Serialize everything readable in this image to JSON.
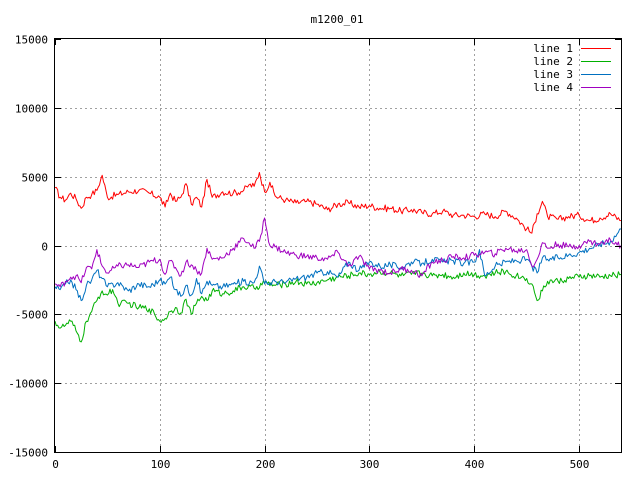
{
  "chart_data": {
    "type": "line",
    "title": "m1200_01",
    "xlabel": "",
    "ylabel": "",
    "xlim": [
      0,
      540
    ],
    "ylim": [
      -15000,
      15000
    ],
    "x_ticks": [
      0,
      100,
      200,
      300,
      400,
      500
    ],
    "y_ticks": [
      -15000,
      -10000,
      -5000,
      0,
      5000,
      10000,
      15000
    ],
    "grid": true,
    "legend_position": "top-right",
    "series": [
      {
        "name": "line 1",
        "color": "#ff0000",
        "x": [
          0,
          5,
          10,
          15,
          20,
          25,
          30,
          35,
          40,
          45,
          50,
          60,
          70,
          80,
          90,
          100,
          105,
          110,
          115,
          120,
          125,
          130,
          135,
          140,
          145,
          150,
          160,
          170,
          180,
          185,
          190,
          195,
          200,
          205,
          210,
          220,
          230,
          240,
          250,
          260,
          270,
          280,
          290,
          300,
          310,
          320,
          330,
          340,
          350,
          360,
          370,
          380,
          390,
          400,
          410,
          420,
          430,
          440,
          450,
          455,
          460,
          465,
          470,
          480,
          490,
          500,
          510,
          520,
          530,
          540
        ],
        "y": [
          4200,
          3500,
          3300,
          3800,
          3400,
          2700,
          3500,
          3700,
          4000,
          5100,
          3500,
          3700,
          3900,
          4000,
          3800,
          3500,
          2800,
          3800,
          3200,
          3500,
          4500,
          3000,
          3500,
          2800,
          4800,
          3500,
          3900,
          3800,
          4000,
          4400,
          4300,
          5300,
          3900,
          4600,
          3600,
          3300,
          3100,
          3200,
          3000,
          2600,
          3000,
          3100,
          2800,
          2900,
          2700,
          2700,
          2500,
          2600,
          2400,
          2300,
          2500,
          2200,
          2200,
          2100,
          2300,
          2100,
          2500,
          2000,
          1200,
          900,
          2300,
          3200,
          2100,
          1900,
          2100,
          2200,
          1800,
          2000,
          2300,
          1800
        ]
      },
      {
        "name": "line 2",
        "color": "#00b000",
        "x": [
          0,
          5,
          10,
          15,
          20,
          25,
          30,
          35,
          40,
          45,
          50,
          55,
          60,
          70,
          80,
          90,
          95,
          100,
          105,
          110,
          115,
          120,
          125,
          130,
          135,
          140,
          145,
          150,
          160,
          170,
          180,
          190,
          200,
          210,
          220,
          230,
          240,
          250,
          260,
          270,
          280,
          290,
          300,
          310,
          320,
          330,
          340,
          350,
          360,
          370,
          380,
          390,
          400,
          410,
          420,
          430,
          440,
          450,
          455,
          460,
          465,
          470,
          480,
          490,
          500,
          510,
          520,
          530,
          540
        ],
        "y": [
          -5500,
          -6000,
          -5800,
          -5500,
          -6200,
          -7000,
          -5500,
          -4800,
          -4000,
          -3300,
          -3600,
          -3200,
          -4200,
          -4200,
          -4500,
          -4600,
          -5000,
          -5500,
          -5300,
          -4800,
          -4500,
          -4900,
          -3900,
          -5000,
          -4200,
          -3700,
          -4000,
          -3300,
          -3500,
          -3300,
          -3000,
          -3100,
          -2700,
          -2900,
          -2800,
          -2600,
          -2800,
          -2700,
          -2500,
          -2300,
          -2200,
          -2000,
          -2100,
          -1900,
          -2000,
          -2200,
          -2100,
          -2000,
          -2200,
          -2100,
          -2300,
          -2000,
          -2100,
          -2200,
          -2000,
          -1900,
          -2200,
          -2400,
          -2800,
          -4000,
          -3300,
          -2600,
          -2600,
          -2400,
          -2300,
          -2200,
          -2300,
          -2200,
          -2100
        ]
      },
      {
        "name": "line 3",
        "color": "#0070c0",
        "x": [
          0,
          5,
          10,
          15,
          20,
          25,
          30,
          35,
          40,
          45,
          50,
          60,
          70,
          80,
          90,
          100,
          105,
          110,
          115,
          120,
          125,
          130,
          135,
          140,
          145,
          150,
          160,
          170,
          180,
          190,
          195,
          200,
          210,
          220,
          230,
          240,
          250,
          260,
          270,
          280,
          290,
          300,
          310,
          320,
          330,
          340,
          350,
          360,
          370,
          380,
          390,
          400,
          405,
          410,
          420,
          430,
          440,
          450,
          455,
          460,
          465,
          470,
          480,
          490,
          500,
          510,
          520,
          530,
          540
        ],
        "y": [
          -3000,
          -3200,
          -2800,
          -2500,
          -3200,
          -4000,
          -2900,
          -2500,
          -1800,
          -2400,
          -3000,
          -2700,
          -3300,
          -2800,
          -3000,
          -2500,
          -2800,
          -2300,
          -3200,
          -3700,
          -2900,
          -3600,
          -2400,
          -3500,
          -2600,
          -2900,
          -3000,
          -2800,
          -2600,
          -2700,
          -1500,
          -2800,
          -2600,
          -2700,
          -2400,
          -2300,
          -2000,
          -1900,
          -2300,
          -1200,
          -1800,
          -1200,
          -1500,
          -1400,
          -1600,
          -1200,
          -1300,
          -1000,
          -1200,
          -1100,
          -1300,
          -1200,
          -300,
          -2200,
          -1500,
          -1200,
          -1100,
          -1000,
          -1500,
          -2000,
          -900,
          -1000,
          -900,
          -700,
          -500,
          -200,
          100,
          300,
          1200
        ]
      },
      {
        "name": "line 4",
        "color": "#a000c0",
        "x": [
          0,
          5,
          10,
          15,
          20,
          25,
          30,
          35,
          40,
          45,
          50,
          60,
          70,
          80,
          90,
          100,
          105,
          110,
          115,
          120,
          125,
          130,
          135,
          140,
          145,
          150,
          160,
          170,
          180,
          185,
          190,
          195,
          200,
          205,
          210,
          220,
          230,
          240,
          250,
          260,
          270,
          280,
          290,
          300,
          310,
          320,
          330,
          340,
          350,
          360,
          370,
          380,
          390,
          400,
          410,
          420,
          430,
          440,
          450,
          455,
          460,
          465,
          470,
          480,
          490,
          500,
          510,
          520,
          530,
          540
        ],
        "y": [
          -2800,
          -3000,
          -2600,
          -2300,
          -2200,
          -2700,
          -1600,
          -1700,
          -300,
          -1500,
          -2000,
          -1500,
          -1400,
          -1600,
          -1200,
          -1000,
          -2100,
          -1100,
          -1600,
          -2200,
          -1200,
          -1400,
          -1800,
          -2000,
          -200,
          -1000,
          -900,
          -200,
          500,
          200,
          -200,
          300,
          2000,
          0,
          -100,
          -500,
          -700,
          -800,
          -900,
          -1000,
          -500,
          -1500,
          -800,
          -1700,
          -1800,
          -2000,
          -1700,
          -1800,
          -2200,
          -1200,
          -1100,
          -800,
          -900,
          -700,
          -500,
          -600,
          -200,
          -400,
          -300,
          -1500,
          -1000,
          200,
          -200,
          100,
          -100,
          0,
          300,
          100,
          400,
          0
        ]
      }
    ]
  }
}
